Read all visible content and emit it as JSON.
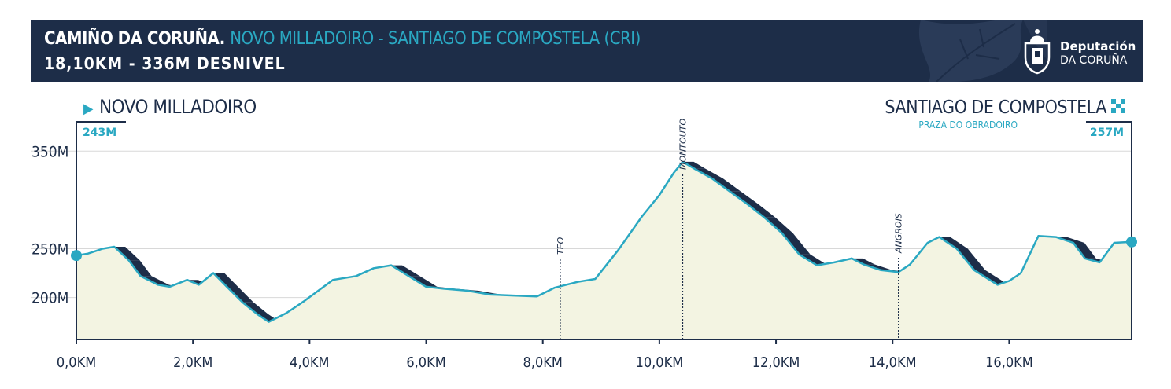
{
  "header": {
    "title_bold": "CAMIÑO DA CORUÑA.",
    "title_highlight": "NOVO MILLADOIRO - SANTIAGO DE COMPOSTELA (CRI)",
    "subtitle": "18,10KM - 336M DESNIVEL",
    "logo_line1": "Deputación",
    "logo_line2": "DA CORUÑA"
  },
  "start": {
    "name": "NOVO MILLADOIRO",
    "altitude_label": "243M"
  },
  "finish": {
    "name": "SANTIAGO DE COMPOSTELA",
    "sublabel": "PRAZA DO OBRADOIRO",
    "altitude_label": "257M"
  },
  "colors": {
    "navy": "#1d2d48",
    "accent": "#2aa8c2",
    "fill": "#f3f4e2",
    "grid": "#d8d8d8"
  },
  "chart_data": {
    "type": "area",
    "xlabel": "",
    "ylabel": "",
    "xlim": [
      0,
      18.1
    ],
    "ylim": [
      157,
      380
    ],
    "x_ticks": [
      0,
      2,
      4,
      6,
      8,
      10,
      12,
      14,
      16
    ],
    "x_tick_labels": [
      "0,0KM",
      "2,0KM",
      "4,0KM",
      "6,0KM",
      "8,0KM",
      "10,0KM",
      "12,0KM",
      "14,0KM",
      "16,0KM"
    ],
    "y_ticks": [
      200,
      250,
      350
    ],
    "y_tick_labels": [
      "200M",
      "250M",
      "350M"
    ],
    "grid": "horizontal",
    "points": [
      [
        0,
        243
      ],
      [
        0.2,
        245
      ],
      [
        0.45,
        250
      ],
      [
        0.65,
        252
      ],
      [
        0.9,
        238
      ],
      [
        1.1,
        222
      ],
      [
        1.4,
        213
      ],
      [
        1.6,
        211
      ],
      [
        1.9,
        218
      ],
      [
        2.1,
        213
      ],
      [
        2.35,
        225
      ],
      [
        2.6,
        210
      ],
      [
        2.85,
        195
      ],
      [
        3.1,
        183
      ],
      [
        3.3,
        175
      ],
      [
        3.6,
        184
      ],
      [
        3.9,
        196
      ],
      [
        4.4,
        218
      ],
      [
        4.8,
        222
      ],
      [
        5.1,
        230
      ],
      [
        5.4,
        233
      ],
      [
        5.7,
        222
      ],
      [
        6.0,
        211
      ],
      [
        6.3,
        209
      ],
      [
        6.7,
        207
      ],
      [
        7.1,
        203
      ],
      [
        7.5,
        202
      ],
      [
        7.9,
        201
      ],
      [
        8.2,
        210
      ],
      [
        8.6,
        216
      ],
      [
        8.9,
        219
      ],
      [
        9.3,
        249
      ],
      [
        9.7,
        283
      ],
      [
        10.0,
        305
      ],
      [
        10.25,
        328
      ],
      [
        10.4,
        339
      ],
      [
        10.6,
        332
      ],
      [
        10.9,
        322
      ],
      [
        11.2,
        309
      ],
      [
        11.5,
        296
      ],
      [
        11.8,
        282
      ],
      [
        12.1,
        266
      ],
      [
        12.4,
        244
      ],
      [
        12.7,
        233
      ],
      [
        13.0,
        236
      ],
      [
        13.3,
        240
      ],
      [
        13.5,
        234
      ],
      [
        13.8,
        228
      ],
      [
        14.1,
        226
      ],
      [
        14.3,
        234
      ],
      [
        14.6,
        256
      ],
      [
        14.8,
        262
      ],
      [
        15.1,
        250
      ],
      [
        15.4,
        228
      ],
      [
        15.8,
        213
      ],
      [
        16.0,
        217
      ],
      [
        16.2,
        225
      ],
      [
        16.5,
        263
      ],
      [
        16.8,
        262
      ],
      [
        17.1,
        256
      ],
      [
        17.3,
        240
      ],
      [
        17.55,
        236
      ],
      [
        17.8,
        256
      ],
      [
        18.1,
        257
      ]
    ],
    "waypoints": [
      {
        "name": "TEO",
        "km": 8.3
      },
      {
        "name": "MONTOUTO",
        "km": 10.4
      },
      {
        "name": "ANGROIS",
        "km": 14.1
      }
    ]
  }
}
